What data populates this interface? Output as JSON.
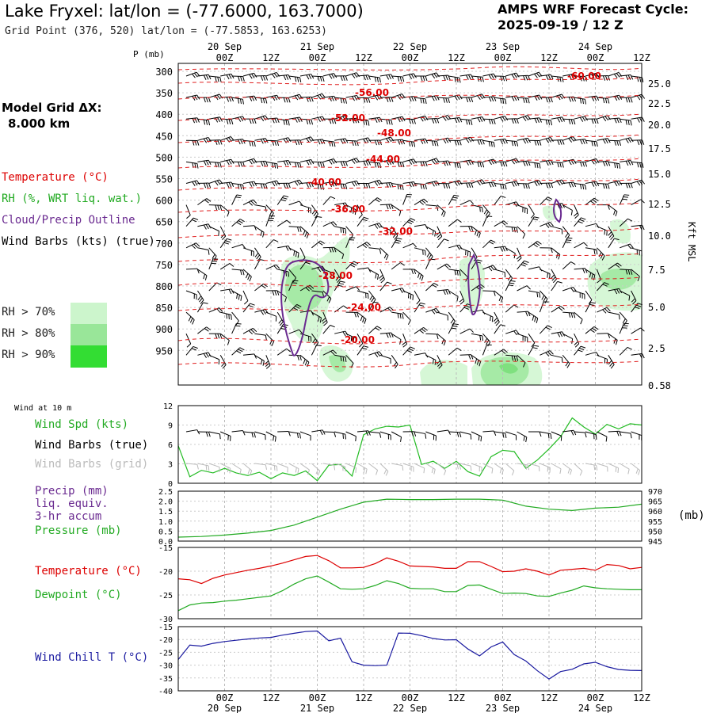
{
  "header": {
    "title": "Lake Fryxel:  lat/lon = (-77.6000, 163.7000)",
    "subtitle": "Grid Point (376, 520) lat/lon = (-77.5853, 163.6253)",
    "cycle_line1": "AMPS WRF Forecast Cycle:",
    "cycle_line2": "2025-09-19 / 12  Z"
  },
  "model_grid": {
    "line1": "Model Grid ΔX:",
    "line2": "8.000 km"
  },
  "legend": {
    "temperature": "Temperature (°C)",
    "rh": "RH (%, WRT liq. wat.)",
    "cloud": "Cloud/Precip Outline",
    "wind": "Wind Barbs (kts) (true)",
    "rh70": "RH > 70%",
    "rh80": "RH > 80%",
    "rh90": "RH > 90%",
    "colors": {
      "temperature": "#dd0000",
      "rh": "#22aa22",
      "cloud": "#6a2a90",
      "rh70": "#ccf5cc",
      "rh80": "#99e699",
      "rh90": "#33dd33"
    }
  },
  "panel_labels": {
    "wind_10m": "Wind at 10 m",
    "wind_spd": "Wind Spd (kts)",
    "wind_barbs_true": "Wind Barbs (true)",
    "wind_barbs_grid": "Wind Barbs (grid)",
    "precip": "Precip (mm)",
    "liq": "liq. equiv.",
    "accum": "3-hr accum",
    "pressure": "Pressure (mb)",
    "pressure_unit": "(mb)",
    "temperature": "Temperature (°C)",
    "dewpoint": "Dewpoint (°C)",
    "wind_chill": "Wind Chill T (°C)",
    "kft": "Kft MSL",
    "p_mb": "P (mb)"
  },
  "time_axis": {
    "ticks": [
      "00Z",
      "12Z",
      "00Z",
      "12Z",
      "00Z",
      "12Z",
      "00Z",
      "12Z",
      "00Z",
      "12Z"
    ],
    "dates": [
      "20 Sep",
      "21 Sep",
      "22 Sep",
      "23 Sep",
      "24 Sep"
    ]
  },
  "chart_data": [
    {
      "type": "contour",
      "title": "Time-height cross section",
      "ylabel": "P (mb)",
      "pressure_ticks": [
        "300",
        "350",
        "400",
        "450",
        "500",
        "550",
        "600",
        "650",
        "700",
        "750",
        "800",
        "850",
        "900",
        "950"
      ],
      "height_ticks_kft": [
        "25.0",
        "22.5",
        "20.0",
        "17.5",
        "15.0",
        "12.5",
        "10.0",
        "7.5",
        "5.0",
        "2.5",
        "0.58"
      ],
      "isotherm_labels": [
        "-60.00",
        "-56.00",
        "-52.00",
        "-48.00",
        "-44.00",
        "-40.00",
        "-36.00",
        "-32.00",
        "-28.00",
        "-24.00",
        "-20.00"
      ]
    },
    {
      "type": "line",
      "title": "Wind Spd (kts)",
      "ylim": [
        0,
        12
      ],
      "yticks": [
        "0",
        "3",
        "6",
        "9",
        "12"
      ],
      "x_hours": [
        0,
        3,
        6,
        9,
        12,
        15,
        18,
        21,
        24,
        27,
        30,
        33,
        36,
        39,
        42,
        45,
        48,
        51,
        54,
        57,
        60,
        63,
        66,
        69,
        72,
        75,
        78,
        81,
        84,
        87,
        90,
        93,
        96,
        99,
        102,
        105,
        108,
        111,
        114,
        117,
        120
      ],
      "values": [
        5.8,
        1.0,
        2.0,
        1.6,
        2.3,
        1.6,
        1.2,
        1.7,
        0.7,
        1.6,
        1.2,
        1.9,
        0.4,
        2.8,
        2.9,
        1.1,
        7.5,
        8.4,
        8.8,
        8.7,
        9.0,
        2.9,
        3.4,
        2.3,
        3.4,
        1.8,
        1.1,
        4.1,
        5.1,
        4.9,
        2.3,
        3.6,
        5.3,
        7.2,
        10.1,
        8.7,
        7.6,
        9.1,
        8.4,
        9.2,
        9.0
      ]
    },
    {
      "type": "line",
      "title": "Pressure (mb)",
      "ylim": [
        945,
        970
      ],
      "yticks": [
        "945",
        "950",
        "955",
        "960",
        "965",
        "970"
      ],
      "precip_yticks": [
        "0.0",
        "0.5",
        "1.0",
        "1.5",
        "2.0",
        "2.5"
      ],
      "x_hours": [
        0,
        6,
        12,
        18,
        24,
        30,
        36,
        42,
        48,
        54,
        60,
        66,
        72,
        78,
        84,
        90,
        96,
        102,
        108,
        114,
        120
      ],
      "values": [
        947.0,
        947.3,
        948.0,
        949.0,
        950.3,
        953.0,
        957.0,
        961.0,
        964.5,
        966.0,
        965.8,
        965.8,
        966.0,
        966.0,
        965.5,
        962.5,
        961.0,
        960.3,
        961.5,
        962.0,
        963.5
      ]
    },
    {
      "type": "line",
      "title": "Temperature / Dewpoint (°C)",
      "ylim": [
        -30,
        -15
      ],
      "yticks": [
        "-15",
        "-20",
        "-25",
        "-30"
      ],
      "x_hours": [
        0,
        3,
        6,
        9,
        12,
        15,
        18,
        21,
        24,
        27,
        30,
        33,
        36,
        39,
        42,
        45,
        48,
        51,
        54,
        57,
        60,
        63,
        66,
        69,
        72,
        75,
        78,
        81,
        84,
        87,
        90,
        93,
        96,
        99,
        102,
        105,
        108,
        111,
        114,
        117,
        120
      ],
      "series": [
        {
          "name": "Temperature",
          "color": "#dd0000",
          "values": [
            -21.6,
            -21.8,
            -22.6,
            -21.5,
            -20.8,
            -20.3,
            -19.8,
            -19.4,
            -18.9,
            -18.3,
            -17.6,
            -16.9,
            -16.7,
            -17.8,
            -19.3,
            -19.3,
            -19.2,
            -18.4,
            -17.2,
            -17.9,
            -18.9,
            -19.0,
            -19.1,
            -19.4,
            -19.4,
            -18.0,
            -18.0,
            -19.0,
            -20.1,
            -20.0,
            -19.5,
            -20.0,
            -20.8,
            -19.8,
            -19.6,
            -19.4,
            -19.8,
            -18.6,
            -18.8,
            -19.5,
            -19.2
          ]
        },
        {
          "name": "Dewpoint",
          "color": "#22aa22",
          "values": [
            -28.3,
            -27.1,
            -26.7,
            -26.6,
            -26.3,
            -26.1,
            -25.8,
            -25.5,
            -25.2,
            -24.1,
            -22.7,
            -21.6,
            -21.0,
            -22.3,
            -23.7,
            -23.8,
            -23.7,
            -23.0,
            -22.0,
            -22.6,
            -23.6,
            -23.7,
            -23.7,
            -24.3,
            -24.3,
            -23.0,
            -22.9,
            -23.8,
            -24.7,
            -24.6,
            -24.7,
            -25.2,
            -25.3,
            -24.6,
            -24.0,
            -23.1,
            -23.5,
            -23.7,
            -23.8,
            -23.9,
            -23.9
          ]
        }
      ]
    },
    {
      "type": "line",
      "title": "Wind Chill T (°C)",
      "ylim": [
        -40,
        -15
      ],
      "yticks": [
        "-15",
        "-20",
        "-25",
        "-30",
        "-35",
        "-40"
      ],
      "x_hours": [
        0,
        3,
        6,
        9,
        12,
        15,
        18,
        21,
        24,
        27,
        30,
        33,
        36,
        39,
        42,
        45,
        48,
        51,
        54,
        57,
        60,
        63,
        66,
        69,
        72,
        75,
        78,
        81,
        84,
        87,
        90,
        93,
        96,
        99,
        102,
        105,
        108,
        111,
        114,
        117,
        120
      ],
      "values": [
        -27.8,
        -22.2,
        -22.6,
        -21.5,
        -20.8,
        -20.3,
        -19.8,
        -19.4,
        -19.2,
        -18.3,
        -17.6,
        -16.9,
        -16.7,
        -20.5,
        -19.5,
        -28.7,
        -30.0,
        -30.2,
        -30.0,
        -17.5,
        -17.6,
        -18.5,
        -19.6,
        -20.2,
        -20.1,
        -23.7,
        -26.4,
        -22.9,
        -21.0,
        -25.9,
        -28.4,
        -32.2,
        -35.4,
        -32.5,
        -31.6,
        -29.5,
        -28.9,
        -30.6,
        -31.7,
        -32.0,
        -32.1
      ]
    }
  ]
}
